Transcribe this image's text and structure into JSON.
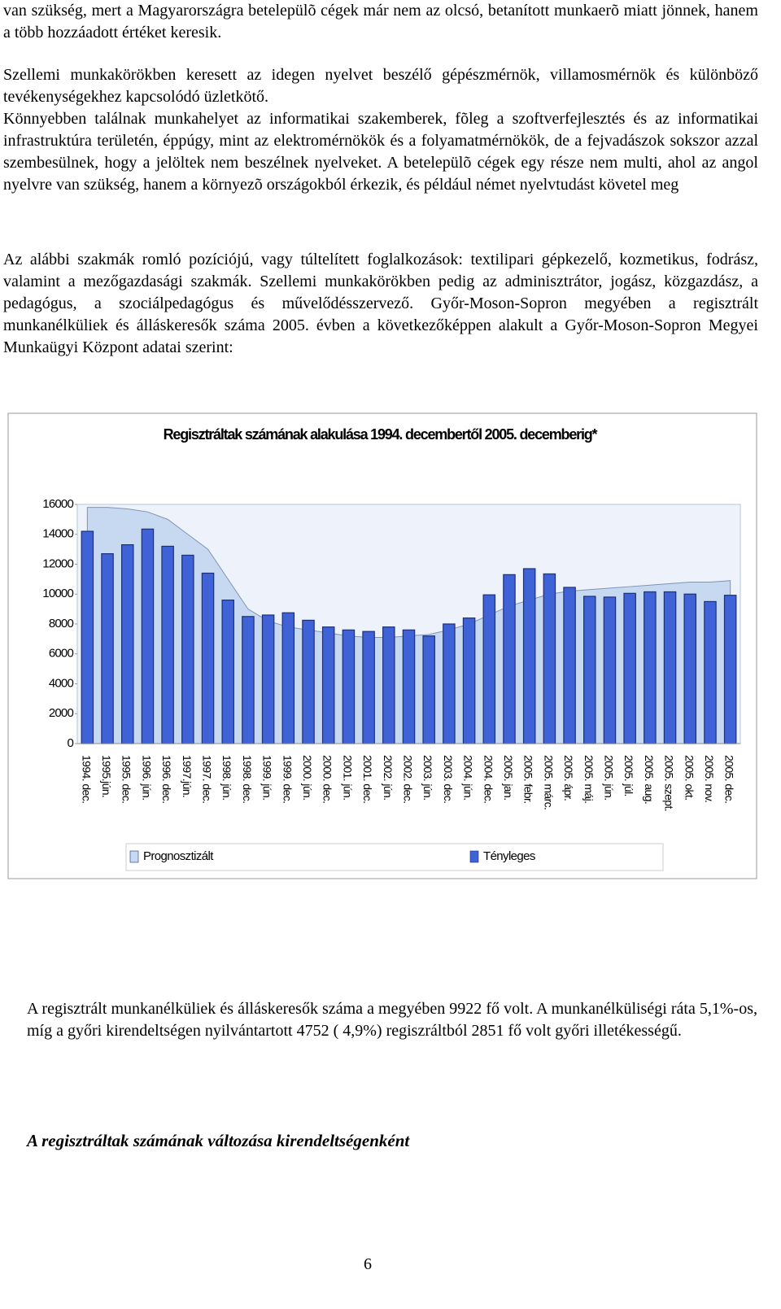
{
  "paragraphs": [
    "van szükség, mert a Magyarországra betelepülõ cégek már nem az olcsó, betanított munkaerõ miatt jönnek, hanem a több hozzáadott értéket keresik.",
    "Szellemi munkakörökben keresett az idegen nyelvet beszélő gépészmérnök, villamosmérnök és különböző tevékenységekhez kapcsolódó üzletkötő.",
    "Könnyebben találnak munkahelyet az informatikai szakemberek, fõleg a szoftverfejlesztés és az informatikai infrastruktúra területén, éppúgy, mint az elektromérnökök és a folyamatmérnökök, de a fejvadászok sokszor azzal szembesülnek, hogy a jelöltek nem beszélnek nyelveket. A betelepülõ cégek egy része nem multi, ahol az angol nyelvre van szükség, hanem a környezõ országokból érkezik, és például német nyelvtudást követel meg",
    "Az alábbi szakmák romló pozíciójú, vagy túltelített foglalkozások: textilipari gépkezelő, kozmetikus, fodrász, valamint a mezőgazdasági szakmák. Szellemi munkakörökben pedig az adminisztrátor, jogász, közgazdász, a pedagógus, a szociálpedagógus és művelődésszervező. Győr-Moson-Sopron megyében a regisztrált munkanélküliek és álláskeresők száma 2005. évben a következőképpen alakult a Győr-Moson-Sopron Megyei Munkaügyi Központ adatai szerint:"
  ],
  "chart_data": {
    "type": "bar",
    "title": "Regisztráltak számának alakulása 1994. decembertől 2005. decemberig*",
    "categories": [
      "1994. dec.",
      "1995.jún.",
      "1995. dec.",
      "1996. jún.",
      "1996. dec.",
      "1997.jún.",
      "1997. dec.",
      "1998. jún.",
      "1998. dec.",
      "1999. jún.",
      "1999. dec.",
      "2000. jún.",
      "2000. dec.",
      "2001. jún.",
      "2001. dec.",
      "2002. jún.",
      "2002. dec.",
      "2003. jún.",
      "2003. dec.",
      "2004. jún.",
      "2004. dec.",
      "2005. jan.",
      "2005. febr.",
      "2005. márc.",
      "2005. ápr.",
      "2005. máj.",
      "2005. jún.",
      "2005. júl.",
      "2005. aug.",
      "2005. szept.",
      "2005. okt.",
      "2005. nov.",
      "2005. dec."
    ],
    "series": [
      {
        "name": "Prognosztizált",
        "type": "area",
        "color": "#c6d9f1",
        "values": [
          15800,
          15800,
          15700,
          15500,
          15000,
          14000,
          13000,
          11000,
          9000,
          8200,
          7800,
          7600,
          7400,
          7200,
          7100,
          7100,
          7200,
          7300,
          7600,
          8000,
          8600,
          9200,
          9600,
          10000,
          10200,
          10300,
          10400,
          10500,
          10600,
          10700,
          10800,
          10800,
          10900
        ]
      },
      {
        "name": "Tényleges",
        "type": "bar",
        "color": "#3f63d6",
        "values": [
          14200,
          12700,
          13300,
          14350,
          13200,
          12600,
          11400,
          9600,
          8500,
          8600,
          8750,
          8250,
          7800,
          7600,
          7500,
          7800,
          7600,
          7200,
          8000,
          8400,
          9950,
          11300,
          11700,
          11350,
          10450,
          9850,
          9800,
          10050,
          10150,
          10150,
          10000,
          9500,
          9922
        ]
      }
    ],
    "ylim": [
      0,
      16000
    ],
    "yticks": [
      0,
      2000,
      4000,
      6000,
      8000,
      10000,
      12000,
      14000,
      16000
    ],
    "grid": false
  },
  "summary": "A regisztrált munkanélküliek és álláskeresők száma a megyében 9922 fő volt. A munkanélküliségi ráta 5,1%-os, míg a győri kirendeltségen nyilvántartott 4752 ( 4,9%) regiszráltból 2851 fő volt  győri illetékességű.",
  "heading": "A regisztráltak számának változása kirendeltségenként",
  "page_number": "6"
}
